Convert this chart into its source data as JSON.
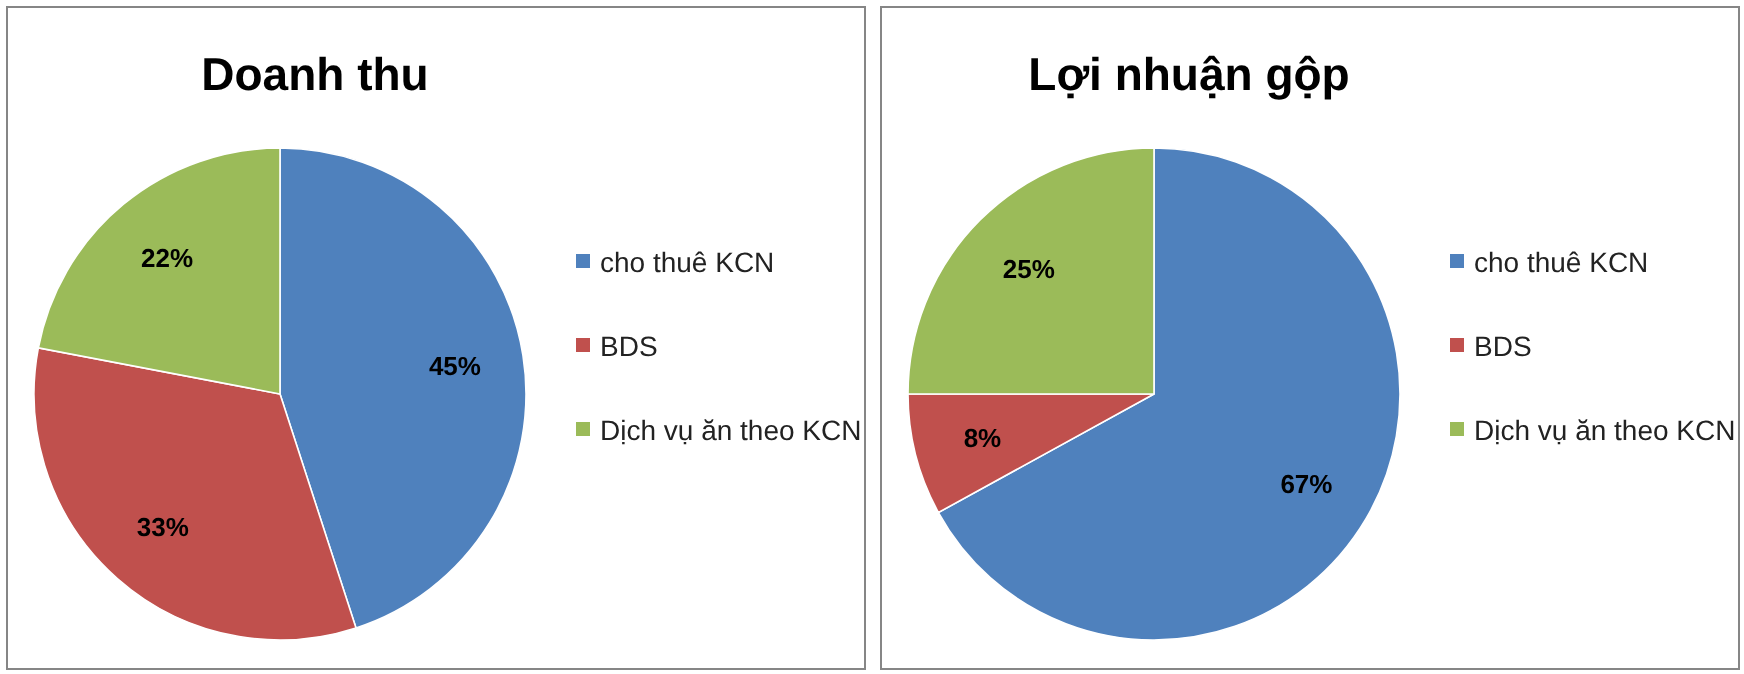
{
  "chart_data": [
    {
      "type": "pie",
      "title": "Doanh thu",
      "categories": [
        "cho thuê KCN",
        "BDS",
        "Dịch vụ ăn theo KCN"
      ],
      "values": [
        45,
        33,
        22
      ],
      "colors": [
        "#4f81bd",
        "#c0504d",
        "#9bbb59"
      ],
      "value_labels": [
        "45%",
        "33%",
        "22%"
      ],
      "legend": "right"
    },
    {
      "type": "pie",
      "title": "Lợi nhuận gộp",
      "categories": [
        "cho thuê KCN",
        "BDS",
        "Dịch vụ ăn theo KCN"
      ],
      "values": [
        67,
        8,
        25
      ],
      "colors": [
        "#4f81bd",
        "#c0504d",
        "#9bbb59"
      ],
      "value_labels": [
        "67%",
        "8%",
        "25%"
      ],
      "legend": "right"
    }
  ]
}
